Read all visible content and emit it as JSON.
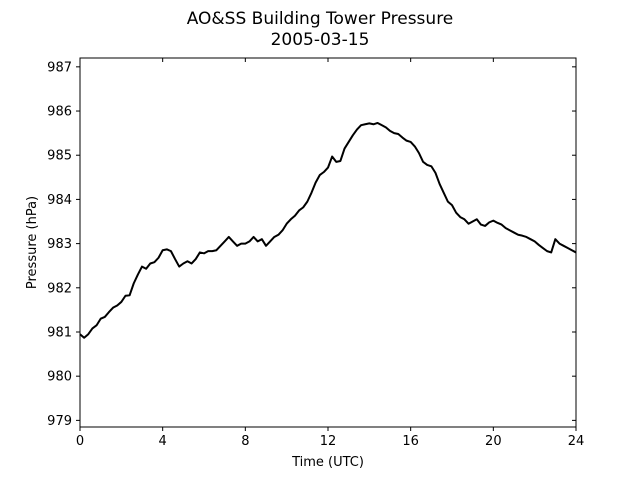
{
  "chart_data": {
    "type": "line",
    "title": "AO&SS Building Tower Pressure",
    "subtitle": "2005-03-15",
    "xlabel": "Time (UTC)",
    "ylabel": "Pressure (hPa)",
    "xlim": [
      0,
      24
    ],
    "ylim": [
      978.85,
      987.2
    ],
    "xticks": [
      0,
      4,
      8,
      12,
      16,
      20,
      24
    ],
    "yticks": [
      979,
      980,
      981,
      982,
      983,
      984,
      985,
      986,
      987
    ],
    "grid": false,
    "line_color": "#000000",
    "series": [
      {
        "x": [
          0,
          0.2,
          0.4,
          0.6,
          0.8,
          1.0,
          1.2,
          1.4,
          1.6,
          1.8,
          2.0,
          2.2,
          2.4,
          2.6,
          2.8,
          3.0,
          3.2,
          3.4,
          3.6,
          3.8,
          4.0,
          4.2,
          4.4,
          4.6,
          4.8,
          5.0,
          5.2,
          5.4,
          5.6,
          5.8,
          6.0,
          6.2,
          6.4,
          6.6,
          6.8,
          7.0,
          7.2,
          7.4,
          7.6,
          7.8,
          8.0,
          8.2,
          8.4,
          8.6,
          8.8,
          9.0,
          9.2,
          9.4,
          9.6,
          9.8,
          10.0,
          10.2,
          10.4,
          10.6,
          10.8,
          11.0,
          11.2,
          11.4,
          11.6,
          11.8,
          12.0,
          12.2,
          12.4,
          12.6,
          12.8,
          13.0,
          13.2,
          13.4,
          13.6,
          13.8,
          14.0,
          14.2,
          14.4,
          14.6,
          14.8,
          15.0,
          15.2,
          15.4,
          15.6,
          15.8,
          16.0,
          16.2,
          16.4,
          16.6,
          16.8,
          17.0,
          17.2,
          17.4,
          17.6,
          17.8,
          18.0,
          18.2,
          18.4,
          18.6,
          18.8,
          19.0,
          19.2,
          19.4,
          19.6,
          19.8,
          20.0,
          20.2,
          20.4,
          20.6,
          20.8,
          21.0,
          21.2,
          21.4,
          21.6,
          21.8,
          22.0,
          22.2,
          22.4,
          22.6,
          22.8,
          23.0,
          23.2,
          23.4,
          23.6,
          23.8,
          24.0
        ],
        "y": [
          980.95,
          980.87,
          980.95,
          981.08,
          981.15,
          981.3,
          981.34,
          981.45,
          981.55,
          981.6,
          981.68,
          981.82,
          981.83,
          982.1,
          982.3,
          982.48,
          982.43,
          982.55,
          982.58,
          982.68,
          982.85,
          982.87,
          982.83,
          982.65,
          982.48,
          982.55,
          982.6,
          982.55,
          982.65,
          982.8,
          982.78,
          982.83,
          982.83,
          982.85,
          982.95,
          983.05,
          983.15,
          983.05,
          982.95,
          983.0,
          983.0,
          983.05,
          983.15,
          983.05,
          983.1,
          982.95,
          983.05,
          983.15,
          983.2,
          983.3,
          983.45,
          983.55,
          983.63,
          983.75,
          983.82,
          983.95,
          984.15,
          984.38,
          984.55,
          984.62,
          984.72,
          984.97,
          984.85,
          984.87,
          985.15,
          985.3,
          985.45,
          985.58,
          985.68,
          985.7,
          985.72,
          985.7,
          985.73,
          985.68,
          985.63,
          985.55,
          985.5,
          985.48,
          985.4,
          985.33,
          985.3,
          985.2,
          985.05,
          984.85,
          984.78,
          984.75,
          984.6,
          984.35,
          984.15,
          983.95,
          983.87,
          983.7,
          983.6,
          983.55,
          983.45,
          983.5,
          983.55,
          983.43,
          983.4,
          983.48,
          983.52,
          983.47,
          983.43,
          983.35,
          983.3,
          983.25,
          983.2,
          983.18,
          983.15,
          983.1,
          983.05,
          982.97,
          982.9,
          982.83,
          982.8,
          983.1,
          983.0,
          982.95,
          982.9,
          982.85,
          982.8
        ]
      }
    ]
  }
}
